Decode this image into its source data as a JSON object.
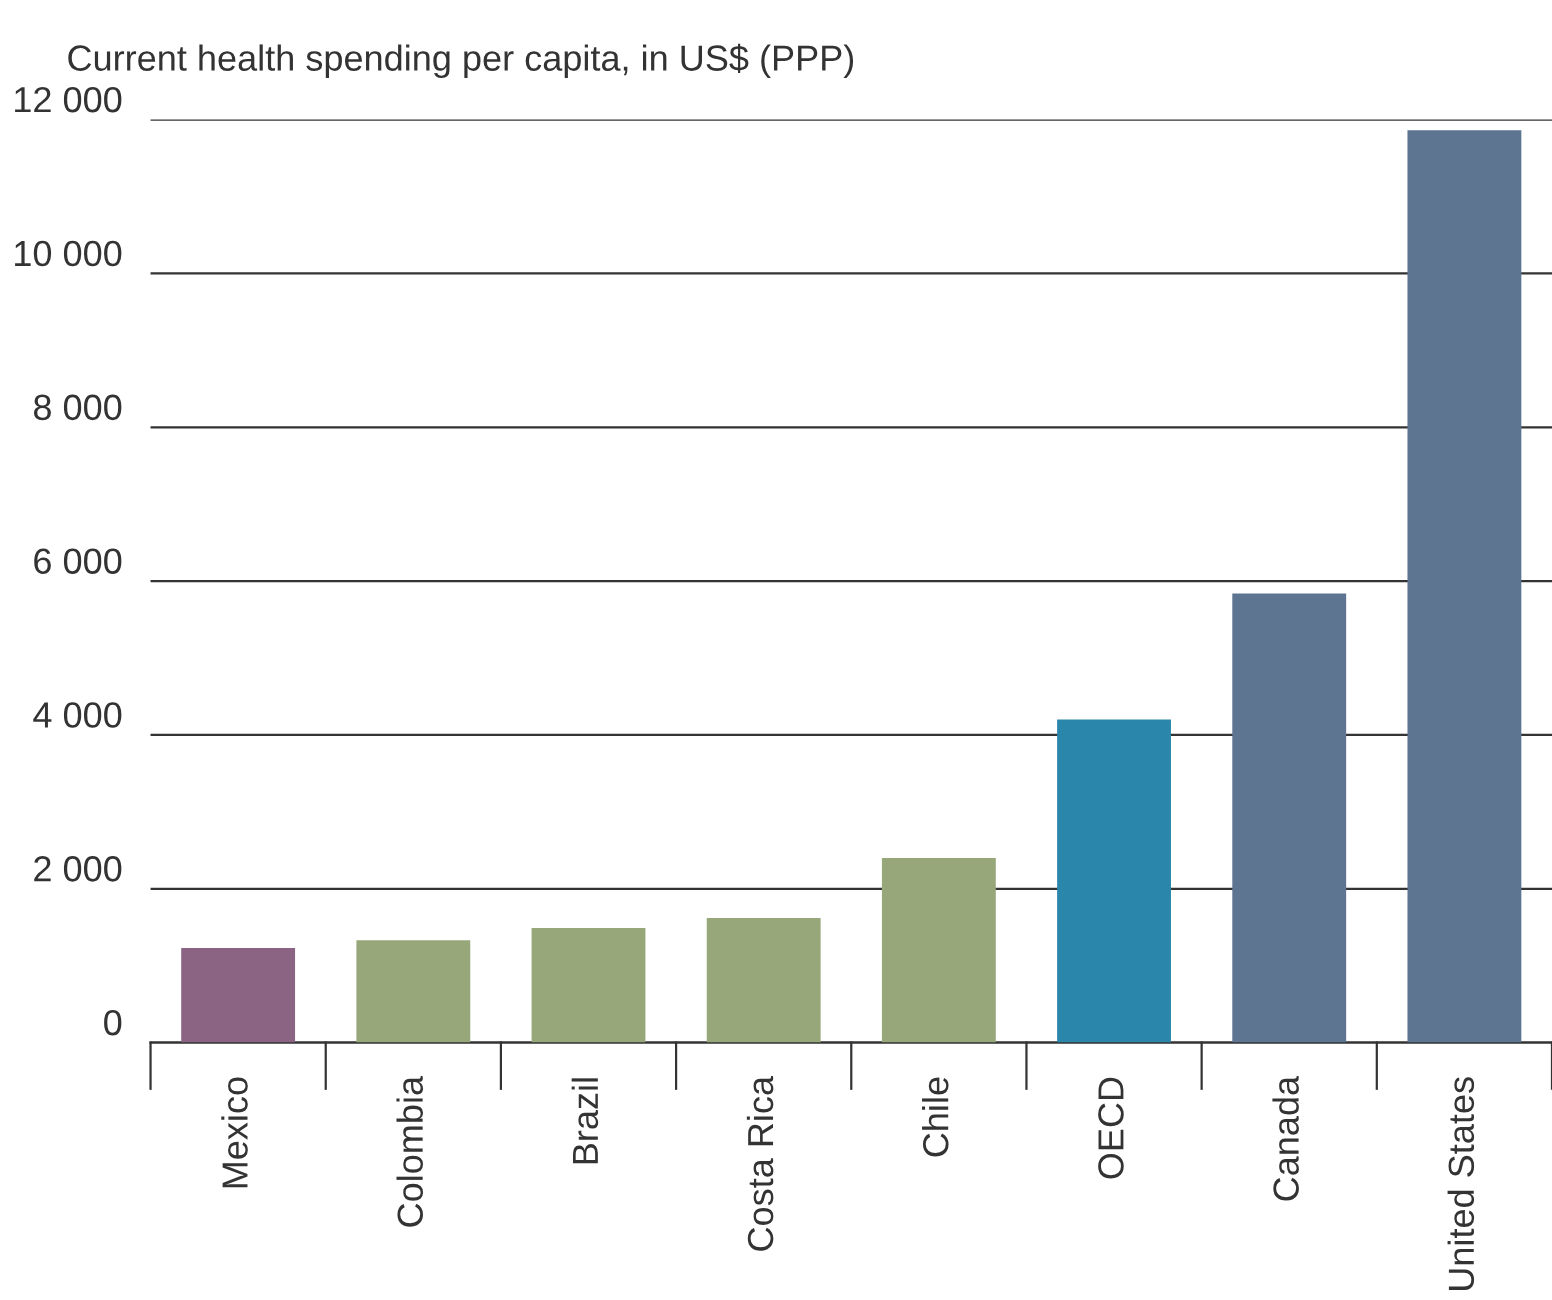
{
  "chart_data": {
    "type": "bar",
    "ylabel": "Current health spending per capita, in US$ (PPP)",
    "categories": [
      "Mexico",
      "Colombia",
      "Brazil",
      "Costa Rica",
      "Chile",
      "OECD",
      "Canada",
      "United States"
    ],
    "values": [
      1230,
      1330,
      1490,
      1620,
      2400,
      4200,
      5840,
      11860
    ],
    "colors": [
      "#8a6482",
      "#97a77a",
      "#97a77a",
      "#97a77a",
      "#97a77a",
      "#2a87ab",
      "#5d7590",
      "#5d7590"
    ],
    "ylim": [
      0,
      12000
    ],
    "yticks": [
      0,
      {
        "value": 2000,
        "label": "2 000"
      },
      {
        "value": 4000,
        "label": "4 000"
      },
      {
        "value": 6000,
        "label": "6 000"
      },
      {
        "value": 8000,
        "label": "8 000"
      },
      {
        "value": 10000,
        "label": "10 000"
      },
      {
        "value": 12000,
        "label": "12 000"
      }
    ],
    "grid": "y"
  }
}
